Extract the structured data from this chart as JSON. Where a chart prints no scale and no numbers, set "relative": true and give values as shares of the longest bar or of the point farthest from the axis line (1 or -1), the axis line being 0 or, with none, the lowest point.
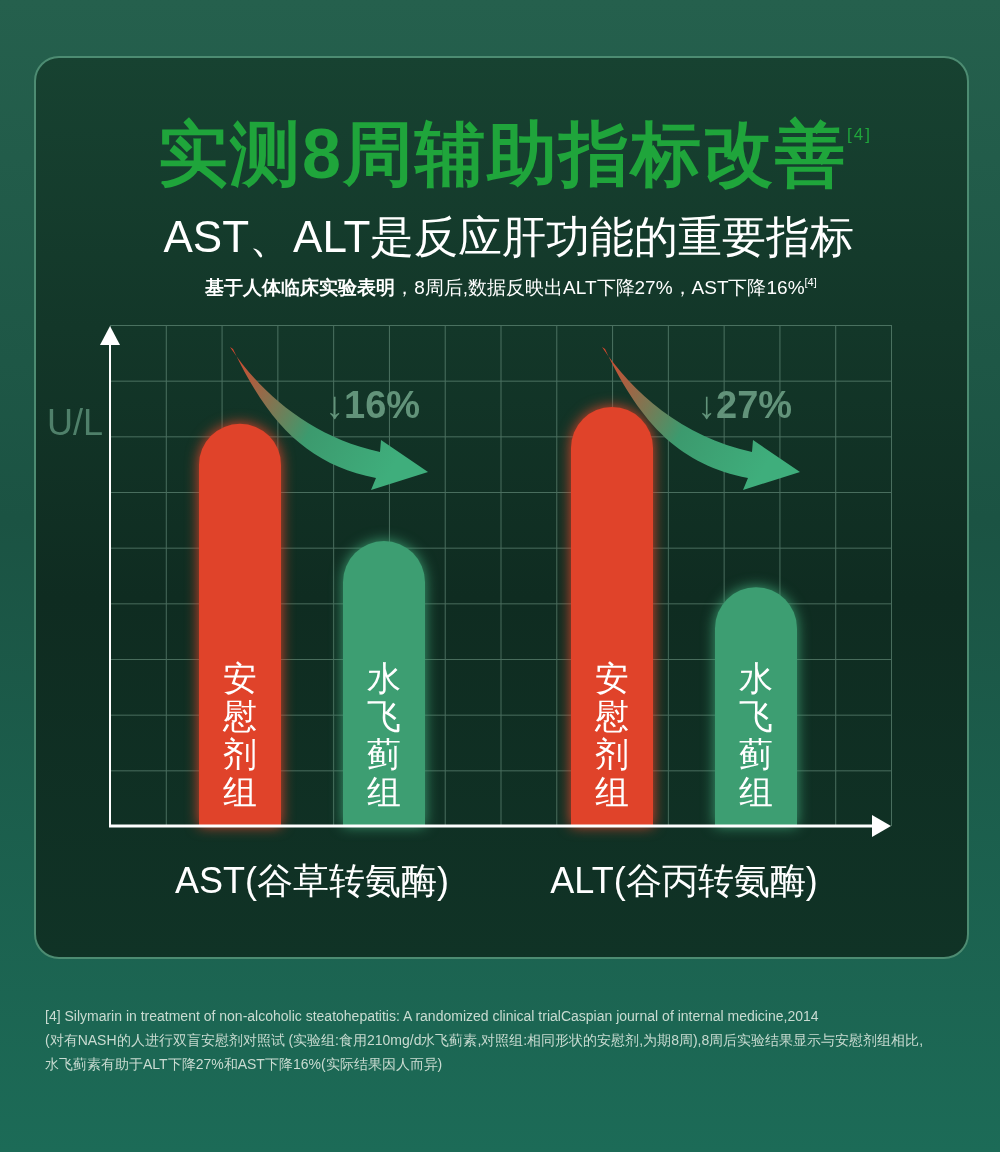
{
  "chart_data": {
    "type": "bar",
    "title": "实测8周辅助指标改善$^{[4]}$",
    "subtitle": "AST、ALT是反应肝功能的重要指标",
    "ylabel": "U/L",
    "categories": [
      "AST(谷草转氨酶)",
      "ALT(谷丙转氨酶)"
    ],
    "series": [
      {
        "name": "安慰剂组",
        "color": "#e0432a",
        "values": [
          0.96,
          1
        ]
      },
      {
        "name": "水飞蓟组",
        "color": "#3d9e72",
        "values": [
          0.68,
          0.57
        ]
      }
    ],
    "relative": true,
    "annotations": [
      "基于人体临床实验表明，8周后,数据反映出ALT下降27%，AST下降16%$^{[4]}$",
      "↓16%",
      "↓27%",
      "[4] Silymarin in treatment of non-alcoholic steatohepatitis: A randomized clinical trialCaspian journal of internal medicine,2014",
      "(对有NASH的人进行双盲安慰剂对照试 (实验组:食用210mg/d水飞蓟素,对照组:相同形状的安慰剂,为期8周),8周后实验结果显示与安慰剂组相比,",
      "水飞蓟素有助于ALT下降27%和AST下降16%(实际结果因人而异)"
    ]
  }
}
